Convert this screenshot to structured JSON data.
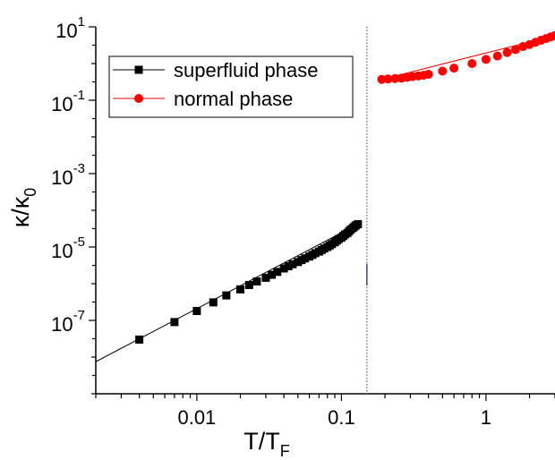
{
  "chart_data": {
    "type": "scatter",
    "xlabel": {
      "main": "T/T",
      "sub": "F"
    },
    "ylabel": {
      "main": "κ/κ",
      "sub": "0"
    },
    "x_scale": "log",
    "y_scale": "log",
    "xlim": [
      0.002,
      3
    ],
    "ylim": [
      1e-09,
      10
    ],
    "x_ticks": [
      {
        "value": 0.01,
        "label": "0.01"
      },
      {
        "value": 0.1,
        "label": "0.1"
      },
      {
        "value": 1,
        "label": "1"
      }
    ],
    "y_ticks": [
      {
        "value": 10,
        "base": "10",
        "exp": "1"
      },
      {
        "value": 0.1,
        "base": "10",
        "exp": "-1"
      },
      {
        "value": 0.001,
        "base": "10",
        "exp": "-3"
      },
      {
        "value": 1e-05,
        "base": "10",
        "exp": "-5"
      },
      {
        "value": 1e-07,
        "base": "10",
        "exp": "-7"
      }
    ],
    "vertical_line": {
      "x": 0.15,
      "color": "#5a5ad6",
      "style": "dotted"
    },
    "legend_position": "top-left",
    "series": [
      {
        "name": "superfluid phase",
        "color": "#000000",
        "marker": "square",
        "fit_line": [
          [
            0.002,
            7.5e-09
          ],
          [
            0.13,
            4.2e-05
          ]
        ],
        "points": [
          [
            0.004,
            3e-08
          ],
          [
            0.007,
            9e-08
          ],
          [
            0.01,
            1.8e-07
          ],
          [
            0.013,
            3.1e-07
          ],
          [
            0.016,
            4.8e-07
          ],
          [
            0.02,
            7e-07
          ],
          [
            0.023,
            9.2e-07
          ],
          [
            0.026,
            1.15e-06
          ],
          [
            0.03,
            1.45e-06
          ],
          [
            0.033,
            1.75e-06
          ],
          [
            0.036,
            2.1e-06
          ],
          [
            0.04,
            2.6e-06
          ],
          [
            0.043,
            3e-06
          ],
          [
            0.046,
            3.4e-06
          ],
          [
            0.05,
            3.9e-06
          ],
          [
            0.053,
            4.4e-06
          ],
          [
            0.056,
            4.9e-06
          ],
          [
            0.06,
            5.5e-06
          ],
          [
            0.063,
            6.1e-06
          ],
          [
            0.066,
            6.8e-06
          ],
          [
            0.07,
            7.5e-06
          ],
          [
            0.073,
            8.3e-06
          ],
          [
            0.076,
            9.1e-06
          ],
          [
            0.08,
            1e-05
          ],
          [
            0.083,
            1.1e-05
          ],
          [
            0.086,
            1.2e-05
          ],
          [
            0.09,
            1.35e-05
          ],
          [
            0.093,
            1.5e-05
          ],
          [
            0.096,
            1.65e-05
          ],
          [
            0.1,
            1.8e-05
          ],
          [
            0.103,
            2e-05
          ],
          [
            0.106,
            2.2e-05
          ],
          [
            0.11,
            2.4e-05
          ],
          [
            0.113,
            2.7e-05
          ],
          [
            0.116,
            3e-05
          ],
          [
            0.12,
            3.3e-05
          ],
          [
            0.123,
            3.6e-05
          ],
          [
            0.126,
            3.9e-05
          ],
          [
            0.13,
            4.2e-05
          ]
        ]
      },
      {
        "name": "normal phase",
        "color": "#ff0000",
        "marker": "circle",
        "fit_line": [
          [
            0.19,
            0.37
          ],
          [
            3,
            5.8
          ]
        ],
        "points": [
          [
            0.19,
            0.37
          ],
          [
            0.21,
            0.38
          ],
          [
            0.235,
            0.39
          ],
          [
            0.26,
            0.4
          ],
          [
            0.285,
            0.42
          ],
          [
            0.31,
            0.44
          ],
          [
            0.34,
            0.46
          ],
          [
            0.37,
            0.48
          ],
          [
            0.4,
            0.51
          ],
          [
            0.5,
            0.62
          ],
          [
            0.6,
            0.75
          ],
          [
            0.8,
            1.0
          ],
          [
            1.0,
            1.3
          ],
          [
            1.2,
            1.6
          ],
          [
            1.4,
            2.0
          ],
          [
            1.6,
            2.4
          ],
          [
            1.8,
            2.9
          ],
          [
            2.0,
            3.3
          ],
          [
            2.2,
            3.8
          ],
          [
            2.4,
            4.3
          ],
          [
            2.6,
            4.8
          ],
          [
            2.8,
            5.3
          ],
          [
            3.0,
            5.8
          ]
        ]
      }
    ]
  }
}
